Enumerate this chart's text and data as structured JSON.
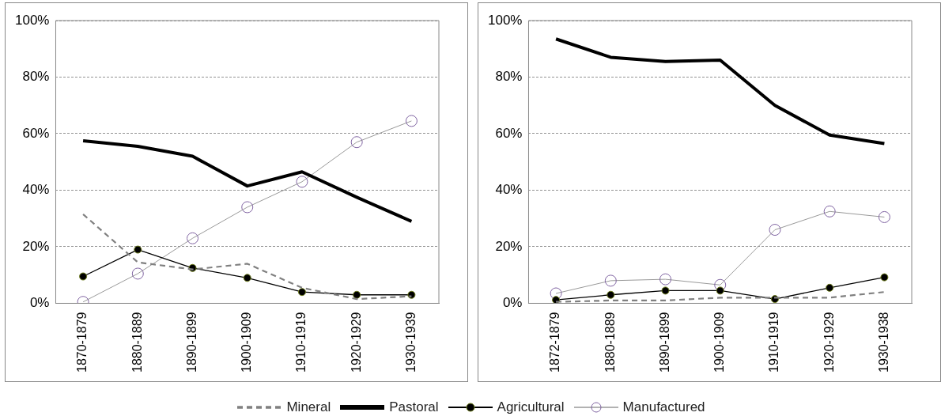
{
  "chart_data": [
    {
      "type": "line",
      "categories": [
        "1870-1879",
        "1880-1889",
        "1890-1899",
        "1900-1909",
        "1910-1919",
        "1920-1929",
        "1930-1939"
      ],
      "ylim": [
        0,
        100
      ],
      "yticks": [
        {
          "value": 0,
          "label": "0%"
        },
        {
          "value": 20,
          "label": "20%"
        },
        {
          "value": 40,
          "label": "40%"
        },
        {
          "value": 60,
          "label": "60%"
        },
        {
          "value": 80,
          "label": "80%"
        },
        {
          "value": 100,
          "label": "100%"
        }
      ],
      "grid": "y",
      "legend": "bottom",
      "series": [
        {
          "name": "Mineral",
          "color": "#808080",
          "line_style": "dashed",
          "marker": "none",
          "values": [
            31.5,
            14.5,
            12,
            14,
            5.5,
            1.5,
            2.5
          ]
        },
        {
          "name": "Pastoral",
          "color": "#000000",
          "line_style": "solid",
          "marker": "none",
          "values": [
            57.5,
            55.5,
            52,
            41.5,
            46.5,
            37.5,
            29
          ]
        },
        {
          "name": "Agricultural",
          "color": "#000000",
          "line_style": "solid",
          "marker": "circle",
          "values": [
            9.5,
            19,
            12.5,
            9,
            4,
            3,
            3
          ]
        },
        {
          "name": "Manufactured",
          "color": "#8064a2",
          "line_style": "solid",
          "marker": "circle",
          "values": [
            0.5,
            10.5,
            23,
            34,
            43,
            57,
            64.5
          ]
        }
      ]
    },
    {
      "type": "line",
      "categories": [
        "1872-1879",
        "1880-1889",
        "1890-1899",
        "1900-1909",
        "1910-1919",
        "1920-1929",
        "1930-1938"
      ],
      "ylim": [
        0,
        100
      ],
      "yticks": [
        {
          "value": 0,
          "label": "0%"
        },
        {
          "value": 20,
          "label": "20%"
        },
        {
          "value": 40,
          "label": "40%"
        },
        {
          "value": 60,
          "label": "60%"
        },
        {
          "value": 80,
          "label": "80%"
        },
        {
          "value": 100,
          "label": "100%"
        }
      ],
      "grid": "y",
      "legend": false,
      "series": [
        {
          "color": "#808080",
          "line_style": "dashed",
          "marker": "none",
          "values": [
            0.5,
            1,
            1,
            2,
            2,
            2,
            4
          ]
        },
        {
          "color": "#000000",
          "line_style": "solid",
          "marker": "none",
          "values": [
            93.5,
            87,
            85.5,
            86,
            70,
            59.5,
            56.5
          ]
        },
        {
          "color": "#000000",
          "line_style": "solid",
          "marker": "circle",
          "values": [
            1.2,
            3,
            4.5,
            4.5,
            1.5,
            5.5,
            9.2
          ]
        },
        {
          "color": "#8064a2",
          "line_style": "solid",
          "marker": "circle",
          "values": [
            3.5,
            8,
            8.5,
            6.5,
            26,
            32.5,
            30.5
          ]
        }
      ]
    }
  ]
}
